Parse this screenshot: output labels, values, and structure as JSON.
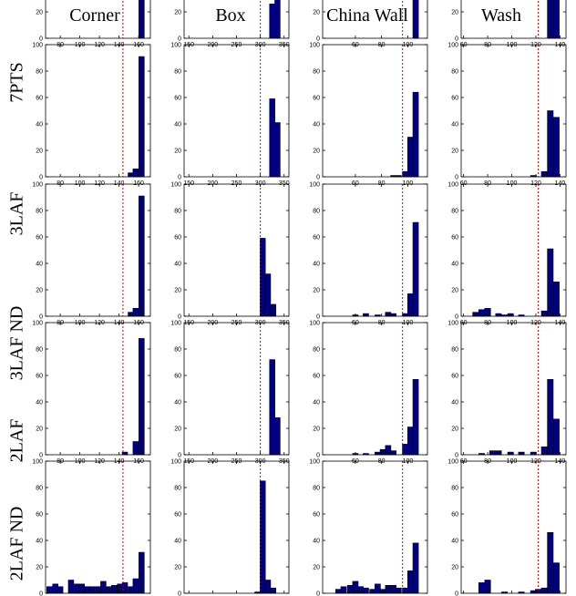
{
  "columns": [
    "Corner",
    "Box",
    "China Wall",
    "Wash"
  ],
  "rows": [
    "7PTS",
    "3LAF",
    "3LAF ND",
    "2LAF",
    "2LAF ND"
  ],
  "colors": {
    "bar": "#000080",
    "threshold": "#cc0000",
    "axis": "#000000"
  },
  "chart_data": {
    "type": "bar",
    "layout": "grid of histograms, rows x columns",
    "ylim": [
      0,
      100
    ],
    "yticks": [
      0,
      20,
      40,
      60,
      80,
      100
    ],
    "grid": false,
    "panel_axes": [
      {
        "column": "Corner",
        "xlim": [
          65,
          172
        ],
        "xticks": [
          80,
          100,
          120,
          140,
          160
        ],
        "threshold": 144,
        "bin_width": 5.5
      },
      {
        "column": "Box",
        "xlim": [
          140,
          360
        ],
        "xticks": [
          150,
          200,
          250,
          300,
          350
        ],
        "threshold": 300,
        "bin_width": 11.2
      },
      {
        "column": "China Wall",
        "xlim": [
          35,
          115
        ],
        "xticks": [
          60,
          80,
          100
        ],
        "threshold": 96,
        "bin_width": 4.2
      },
      {
        "column": "Wash",
        "xlim": [
          58,
          145
        ],
        "xticks": [
          60,
          80,
          100,
          120,
          140
        ],
        "threshold": 122,
        "bin_width": 4.8
      }
    ],
    "panels": [
      {
        "row": "7PTS",
        "column": "Corner",
        "bins": [
          {
            "x": 163,
            "y": 100
          }
        ]
      },
      {
        "row": "7PTS",
        "column": "Box",
        "bins": [
          {
            "x": 325,
            "y": 26
          },
          {
            "x": 336,
            "y": 74
          }
        ]
      },
      {
        "row": "7PTS",
        "column": "China Wall",
        "bins": [
          {
            "x": 106,
            "y": 100
          }
        ]
      },
      {
        "row": "7PTS",
        "column": "Wash",
        "bins": [
          {
            "x": 132,
            "y": 41
          },
          {
            "x": 137,
            "y": 59
          }
        ]
      },
      {
        "row": "3LAF",
        "column": "Corner",
        "bins": [
          {
            "x": 152,
            "y": 3
          },
          {
            "x": 157,
            "y": 6
          },
          {
            "x": 163,
            "y": 91
          }
        ]
      },
      {
        "row": "3LAF",
        "column": "Box",
        "bins": [
          {
            "x": 325,
            "y": 59
          },
          {
            "x": 336,
            "y": 41
          }
        ]
      },
      {
        "row": "3LAF",
        "column": "China Wall",
        "bins": [
          {
            "x": 89,
            "y": 1
          },
          {
            "x": 93,
            "y": 1
          },
          {
            "x": 98,
            "y": 4
          },
          {
            "x": 102,
            "y": 30
          },
          {
            "x": 106,
            "y": 64
          }
        ]
      },
      {
        "row": "3LAF",
        "column": "Wash",
        "bins": [
          {
            "x": 118,
            "y": 1
          },
          {
            "x": 127,
            "y": 4
          },
          {
            "x": 132,
            "y": 50
          },
          {
            "x": 137,
            "y": 45
          }
        ]
      },
      {
        "row": "3LAF ND",
        "column": "Corner",
        "bins": [
          {
            "x": 152,
            "y": 3
          },
          {
            "x": 157,
            "y": 6
          },
          {
            "x": 163,
            "y": 91
          }
        ]
      },
      {
        "row": "3LAF ND",
        "column": "Box",
        "bins": [
          {
            "x": 305,
            "y": 59
          },
          {
            "x": 316,
            "y": 32
          },
          {
            "x": 327,
            "y": 9
          }
        ]
      },
      {
        "row": "3LAF ND",
        "column": "China Wall",
        "bins": [
          {
            "x": 60,
            "y": 1
          },
          {
            "x": 68,
            "y": 2
          },
          {
            "x": 77,
            "y": 1
          },
          {
            "x": 85,
            "y": 3
          },
          {
            "x": 89,
            "y": 2
          },
          {
            "x": 98,
            "y": 2
          },
          {
            "x": 102,
            "y": 17
          },
          {
            "x": 106,
            "y": 71
          }
        ]
      },
      {
        "row": "3LAF ND",
        "column": "Wash",
        "bins": [
          {
            "x": 70,
            "y": 3
          },
          {
            "x": 75,
            "y": 5
          },
          {
            "x": 80,
            "y": 6
          },
          {
            "x": 89,
            "y": 2
          },
          {
            "x": 94,
            "y": 1
          },
          {
            "x": 99,
            "y": 2
          },
          {
            "x": 108,
            "y": 1
          },
          {
            "x": 127,
            "y": 4
          },
          {
            "x": 132,
            "y": 51
          },
          {
            "x": 137,
            "y": 26
          }
        ]
      },
      {
        "row": "2LAF",
        "column": "Corner",
        "bins": [
          {
            "x": 146,
            "y": 2
          },
          {
            "x": 157,
            "y": 10
          },
          {
            "x": 163,
            "y": 88
          }
        ]
      },
      {
        "row": "2LAF",
        "column": "Box",
        "bins": [
          {
            "x": 325,
            "y": 72
          },
          {
            "x": 336,
            "y": 28
          }
        ]
      },
      {
        "row": "2LAF",
        "column": "China Wall",
        "bins": [
          {
            "x": 60,
            "y": 1
          },
          {
            "x": 68,
            "y": 1
          },
          {
            "x": 77,
            "y": 2
          },
          {
            "x": 81,
            "y": 4
          },
          {
            "x": 85,
            "y": 7
          },
          {
            "x": 89,
            "y": 3
          },
          {
            "x": 98,
            "y": 8
          },
          {
            "x": 102,
            "y": 21
          },
          {
            "x": 106,
            "y": 57
          }
        ]
      },
      {
        "row": "2LAF",
        "column": "Wash",
        "bins": [
          {
            "x": 75,
            "y": 1
          },
          {
            "x": 84,
            "y": 3
          },
          {
            "x": 89,
            "y": 3
          },
          {
            "x": 99,
            "y": 2
          },
          {
            "x": 108,
            "y": 2
          },
          {
            "x": 118,
            "y": 2
          },
          {
            "x": 127,
            "y": 6
          },
          {
            "x": 132,
            "y": 57
          },
          {
            "x": 137,
            "y": 27
          }
        ]
      },
      {
        "row": "2LAF ND",
        "column": "Corner",
        "bins": [
          {
            "x": 69,
            "y": 5
          },
          {
            "x": 75,
            "y": 7
          },
          {
            "x": 80,
            "y": 5
          },
          {
            "x": 91,
            "y": 10
          },
          {
            "x": 97,
            "y": 7
          },
          {
            "x": 102,
            "y": 7
          },
          {
            "x": 108,
            "y": 5
          },
          {
            "x": 113,
            "y": 5
          },
          {
            "x": 119,
            "y": 5
          },
          {
            "x": 124,
            "y": 9
          },
          {
            "x": 130,
            "y": 5
          },
          {
            "x": 135,
            "y": 6
          },
          {
            "x": 141,
            "y": 7
          },
          {
            "x": 146,
            "y": 8
          },
          {
            "x": 152,
            "y": 5
          },
          {
            "x": 157,
            "y": 11
          },
          {
            "x": 163,
            "y": 31
          }
        ]
      },
      {
        "row": "2LAF ND",
        "column": "Box",
        "bins": [
          {
            "x": 294,
            "y": 1
          },
          {
            "x": 305,
            "y": 85
          },
          {
            "x": 316,
            "y": 10
          },
          {
            "x": 327,
            "y": 4
          }
        ]
      },
      {
        "row": "2LAF ND",
        "column": "China Wall",
        "bins": [
          {
            "x": 47,
            "y": 3
          },
          {
            "x": 51,
            "y": 5
          },
          {
            "x": 56,
            "y": 6
          },
          {
            "x": 60,
            "y": 9
          },
          {
            "x": 64,
            "y": 5
          },
          {
            "x": 68,
            "y": 4
          },
          {
            "x": 73,
            "y": 3
          },
          {
            "x": 77,
            "y": 7
          },
          {
            "x": 81,
            "y": 3
          },
          {
            "x": 85,
            "y": 6
          },
          {
            "x": 89,
            "y": 6
          },
          {
            "x": 93,
            "y": 4
          },
          {
            "x": 98,
            "y": 4
          },
          {
            "x": 102,
            "y": 17
          },
          {
            "x": 106,
            "y": 38
          }
        ]
      },
      {
        "row": "2LAF ND",
        "column": "Wash",
        "bins": [
          {
            "x": 75,
            "y": 8
          },
          {
            "x": 80,
            "y": 10
          },
          {
            "x": 94,
            "y": 1
          },
          {
            "x": 108,
            "y": 1
          },
          {
            "x": 118,
            "y": 2
          },
          {
            "x": 122,
            "y": 3
          },
          {
            "x": 127,
            "y": 4
          },
          {
            "x": 132,
            "y": 46
          },
          {
            "x": 137,
            "y": 23
          }
        ]
      }
    ]
  }
}
